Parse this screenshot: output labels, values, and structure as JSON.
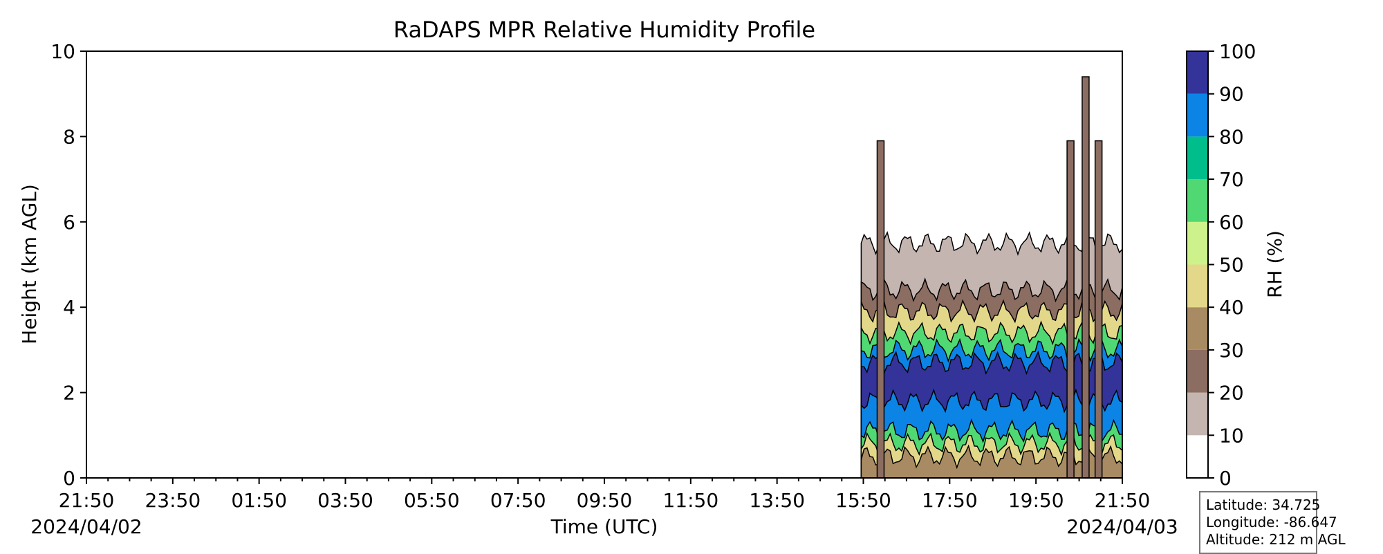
{
  "chart_data": {
    "type": "heatmap",
    "subtype": "filled-contour profile",
    "title": "RaDAPS MPR Relative Humidity Profile",
    "xlabel": "Time (UTC)",
    "ylabel": "Height (km AGL)",
    "x_tick_labels": [
      "21:50",
      "23:50",
      "01:50",
      "03:50",
      "05:50",
      "07:50",
      "09:50",
      "11:50",
      "13:50",
      "15:50",
      "17:50",
      "19:50",
      "21:50"
    ],
    "x_date_labels": {
      "start": "2024/04/02",
      "end": "2024/04/03"
    },
    "x_range_hours": [
      0,
      24
    ],
    "ylim": [
      0,
      10
    ],
    "y_ticks": [
      0,
      2,
      4,
      6,
      8,
      10
    ],
    "data_start_time": "15:50",
    "colorbar": {
      "label": "RH (%)",
      "ticks": [
        0,
        10,
        20,
        30,
        40,
        50,
        60,
        70,
        80,
        90,
        100
      ],
      "colors": [
        "#ffffff",
        "#c4b5b1",
        "#8c6d61",
        "#a88b62",
        "#e3d88a",
        "#cdf28c",
        "#50d873",
        "#00be8c",
        "#0c84e6",
        "#333399"
      ]
    },
    "profile_layers_rh": [
      {
        "rh": 30,
        "height_km": [
          0.0,
          0.5
        ]
      },
      {
        "rh": 40,
        "height_km": [
          0.5,
          0.8
        ]
      },
      {
        "rh": 60,
        "height_km": [
          0.8,
          1.1
        ]
      },
      {
        "rh": 80,
        "height_km": [
          1.1,
          1.8
        ]
      },
      {
        "rh": 95,
        "height_km": [
          1.8,
          2.7
        ]
      },
      {
        "rh": 80,
        "height_km": [
          2.7,
          3.0
        ]
      },
      {
        "rh": 60,
        "height_km": [
          3.0,
          3.4
        ]
      },
      {
        "rh": 40,
        "height_km": [
          3.4,
          3.9
        ]
      },
      {
        "rh": 20,
        "height_km": [
          3.9,
          4.4
        ]
      },
      {
        "rh": 10,
        "height_km": [
          4.4,
          5.5
        ]
      }
    ],
    "spikes_hours": [
      18.4,
      22.8,
      23.15,
      23.45
    ]
  },
  "info_box": {
    "latitude": "Latitude: 34.725",
    "longitude": "Longitude: -86.647",
    "altitude": "Altitude: 212 m AGL"
  }
}
